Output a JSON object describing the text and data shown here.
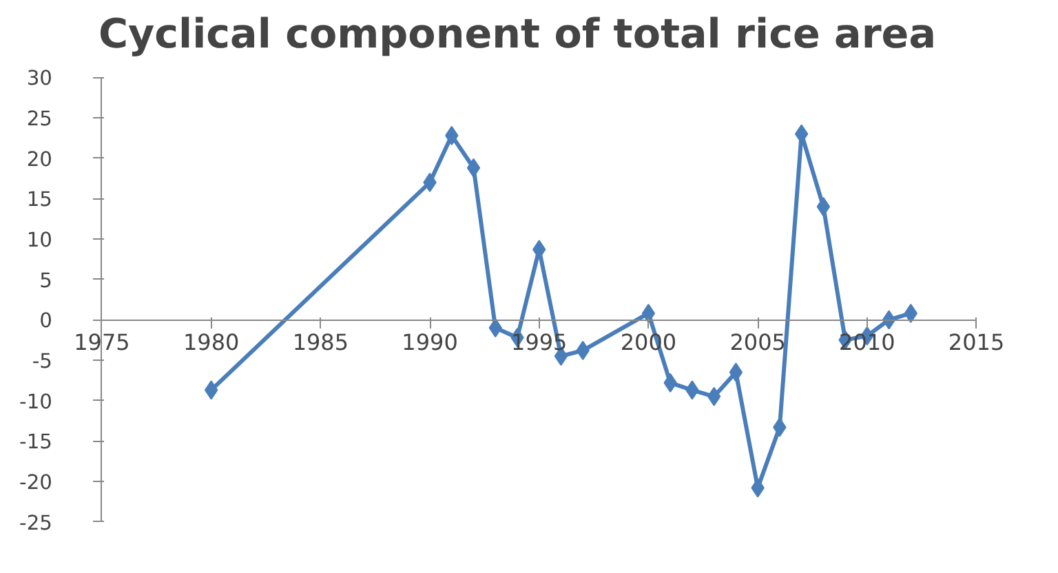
{
  "chart_data": {
    "type": "line",
    "title": "Cyclical component of total rice area",
    "x": [
      1980,
      1990,
      1991,
      1992,
      1993,
      1994,
      1995,
      1996,
      1997,
      2000,
      2001,
      2002,
      2003,
      2004,
      2005,
      2006,
      2007,
      2008,
      2009,
      2010,
      2011,
      2012
    ],
    "series": [
      {
        "color": "#4a7ebb",
        "values": [
          -8.7,
          17,
          22.8,
          18.8,
          -1,
          -2.2,
          8.7,
          -4.5,
          -3.8,
          0.8,
          -7.8,
          -8.7,
          -9.5,
          -6.5,
          -20.8,
          -13.3,
          23,
          14,
          -2.5,
          -2,
          0,
          0.8
        ]
      }
    ],
    "xlim": [
      1975,
      2015
    ],
    "xticks": [
      1975,
      1980,
      1985,
      1990,
      1995,
      2000,
      2005,
      2010,
      2015
    ],
    "ylim": [
      -25,
      30
    ],
    "yticks": [
      -25,
      -20,
      -15,
      -10,
      -5,
      0,
      5,
      10,
      15,
      20,
      25,
      30
    ],
    "grid": false,
    "marker": "diamond",
    "line_style": "solid"
  }
}
